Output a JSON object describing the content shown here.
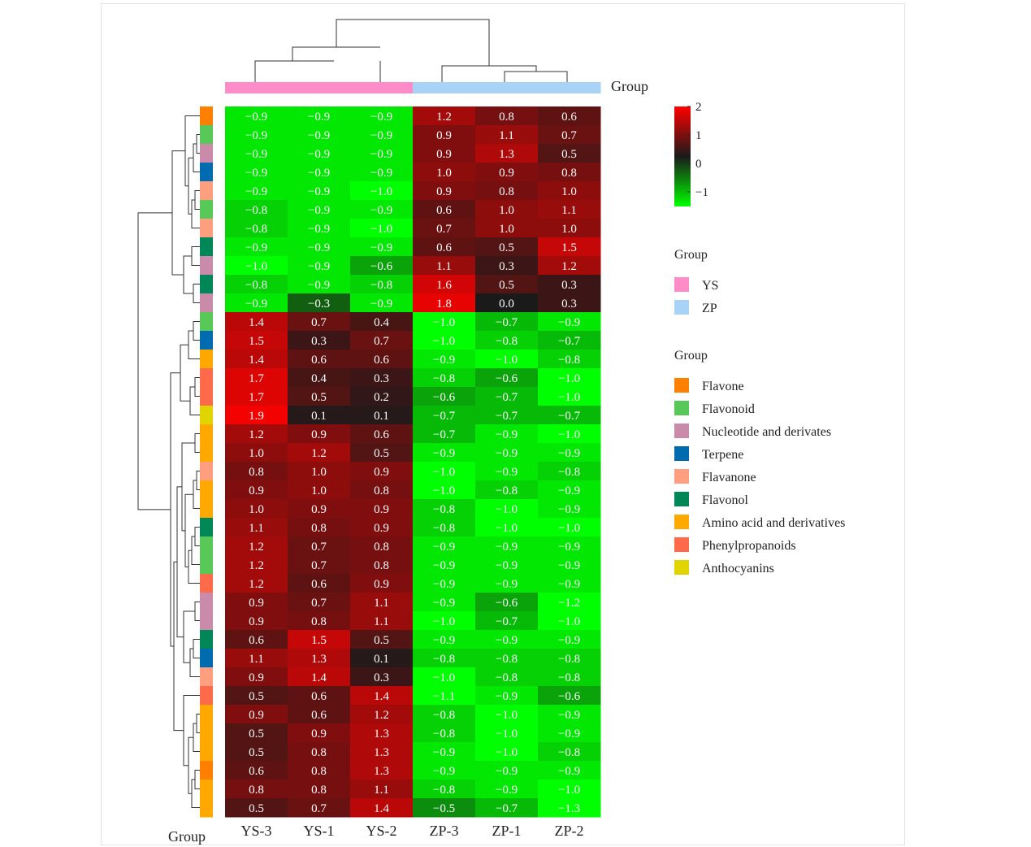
{
  "chart_data": {
    "type": "heatmap",
    "columns": [
      "YS-3",
      "YS-1",
      "YS-2",
      "ZP-3",
      "ZP-1",
      "ZP-2"
    ],
    "column_groups": [
      "YS",
      "YS",
      "YS",
      "ZP",
      "ZP",
      "ZP"
    ],
    "row_classes": [
      "Flavone",
      "Flavonoid",
      "Nucleotide and derivates",
      "Terpene",
      "Flavanone",
      "Flavonoid",
      "Flavanone",
      "Flavonol",
      "Nucleotide and derivates",
      "Flavonol",
      "Nucleotide and derivates",
      "Flavonoid",
      "Terpene",
      "Amino acid and derivatives",
      "Phenylpropanoids",
      "Phenylpropanoids",
      "Anthocyanins",
      "Amino acid and derivatives",
      "Amino acid and derivatives",
      "Flavanone",
      "Amino acid and derivatives",
      "Amino acid and derivatives",
      "Flavonol",
      "Flavonoid",
      "Flavonoid",
      "Phenylpropanoids",
      "Nucleotide and derivates",
      "Nucleotide and derivates",
      "Flavonol",
      "Terpene",
      "Flavanone",
      "Phenylpropanoids",
      "Amino acid and derivatives",
      "Amino acid and derivatives",
      "Amino acid and derivatives",
      "Flavone",
      "Amino acid and derivatives",
      "Amino acid and derivatives"
    ],
    "values": [
      [
        -0.9,
        -0.9,
        -0.9,
        1.2,
        0.8,
        0.6
      ],
      [
        -0.9,
        -0.9,
        -0.9,
        0.9,
        1.1,
        0.7
      ],
      [
        -0.9,
        -0.9,
        -0.9,
        0.9,
        1.3,
        0.5
      ],
      [
        -0.9,
        -0.9,
        -0.9,
        1.0,
        0.9,
        0.8
      ],
      [
        -0.9,
        -0.9,
        -1.0,
        0.9,
        0.8,
        1.0
      ],
      [
        -0.8,
        -0.9,
        -0.9,
        0.6,
        1.0,
        1.1
      ],
      [
        -0.8,
        -0.9,
        -1.0,
        0.7,
        1.0,
        1.0
      ],
      [
        -0.9,
        -0.9,
        -0.9,
        0.6,
        0.5,
        1.5
      ],
      [
        -1.0,
        -0.9,
        -0.6,
        1.1,
        0.3,
        1.2
      ],
      [
        -0.8,
        -0.9,
        -0.8,
        1.6,
        0.5,
        0.3
      ],
      [
        -0.9,
        -0.3,
        -0.9,
        1.8,
        0.0,
        0.3
      ],
      [
        1.4,
        0.7,
        0.4,
        -1.0,
        -0.7,
        -0.9
      ],
      [
        1.5,
        0.3,
        0.7,
        -1.0,
        -0.8,
        -0.7
      ],
      [
        1.4,
        0.6,
        0.6,
        -0.9,
        -1.0,
        -0.8
      ],
      [
        1.7,
        0.4,
        0.3,
        -0.8,
        -0.6,
        -1.0
      ],
      [
        1.7,
        0.5,
        0.2,
        -0.6,
        -0.7,
        -1.0
      ],
      [
        1.9,
        0.1,
        0.1,
        -0.7,
        -0.7,
        -0.7
      ],
      [
        1.2,
        0.9,
        0.6,
        -0.7,
        -0.9,
        -1.0
      ],
      [
        1.0,
        1.2,
        0.5,
        -0.9,
        -0.9,
        -0.9
      ],
      [
        0.8,
        1.0,
        0.9,
        -1.0,
        -0.9,
        -0.8
      ],
      [
        0.9,
        1.0,
        0.8,
        -1.0,
        -0.8,
        -0.9
      ],
      [
        1.0,
        0.9,
        0.9,
        -0.8,
        -1.0,
        -0.9
      ],
      [
        1.1,
        0.8,
        0.9,
        -0.8,
        -1.0,
        -1.0
      ],
      [
        1.2,
        0.7,
        0.8,
        -0.9,
        -0.9,
        -0.9
      ],
      [
        1.2,
        0.7,
        0.8,
        -0.9,
        -0.9,
        -0.9
      ],
      [
        1.2,
        0.6,
        0.9,
        -0.9,
        -0.9,
        -0.9
      ],
      [
        0.9,
        0.7,
        1.1,
        -0.9,
        -0.6,
        -1.2
      ],
      [
        0.9,
        0.8,
        1.1,
        -1.0,
        -0.7,
        -1.0
      ],
      [
        0.6,
        1.5,
        0.5,
        -0.9,
        -0.9,
        -0.9
      ],
      [
        1.1,
        1.3,
        0.1,
        -0.8,
        -0.8,
        -0.8
      ],
      [
        0.9,
        1.4,
        0.3,
        -1.0,
        -0.8,
        -0.8
      ],
      [
        0.5,
        0.6,
        1.4,
        -1.1,
        -0.9,
        -0.6
      ],
      [
        0.9,
        0.6,
        1.2,
        -0.8,
        -1.0,
        -0.9
      ],
      [
        0.5,
        0.9,
        1.3,
        -0.8,
        -1.0,
        -0.9
      ],
      [
        0.5,
        0.8,
        1.3,
        -0.9,
        -1.0,
        -0.8
      ],
      [
        0.6,
        0.8,
        1.3,
        -0.9,
        -0.9,
        -0.9
      ],
      [
        0.8,
        0.8,
        1.1,
        -0.8,
        -0.9,
        -1.0
      ],
      [
        0.5,
        0.7,
        1.4,
        -0.5,
        -0.7,
        -1.3
      ]
    ],
    "color_scale": {
      "ticks": [
        2,
        1,
        0,
        -1
      ],
      "tick_labels": [
        "2",
        "1",
        "0",
        "−1"
      ],
      "colors": [
        "#00ff00",
        "#1a1a1a",
        "#ff0000"
      ],
      "range": [
        -1.3,
        2.0
      ]
    },
    "top_annotation_label": "Group",
    "left_annotation_label": "Group",
    "legend_group_title": "Group",
    "legend_groups": [
      {
        "name": "YS",
        "color": "#ff8bc9"
      },
      {
        "name": "ZP",
        "color": "#a9d3f6"
      }
    ],
    "legend_class_title": "Group",
    "legend_classes": [
      {
        "name": "Flavone",
        "color": "#ff8000"
      },
      {
        "name": "Flavonoid",
        "color": "#58c958"
      },
      {
        "name": "Nucleotide and derivates",
        "color": "#c98ba9"
      },
      {
        "name": "Terpene",
        "color": "#006bae"
      },
      {
        "name": "Flavanone",
        "color": "#ff9f80"
      },
      {
        "name": "Flavonol",
        "color": "#008757"
      },
      {
        "name": "Amino acid and derivatives",
        "color": "#ffa800"
      },
      {
        "name": "Phenylpropanoids",
        "color": "#ff6a4a"
      },
      {
        "name": "Anthocyanins",
        "color": "#e0d500"
      }
    ]
  }
}
